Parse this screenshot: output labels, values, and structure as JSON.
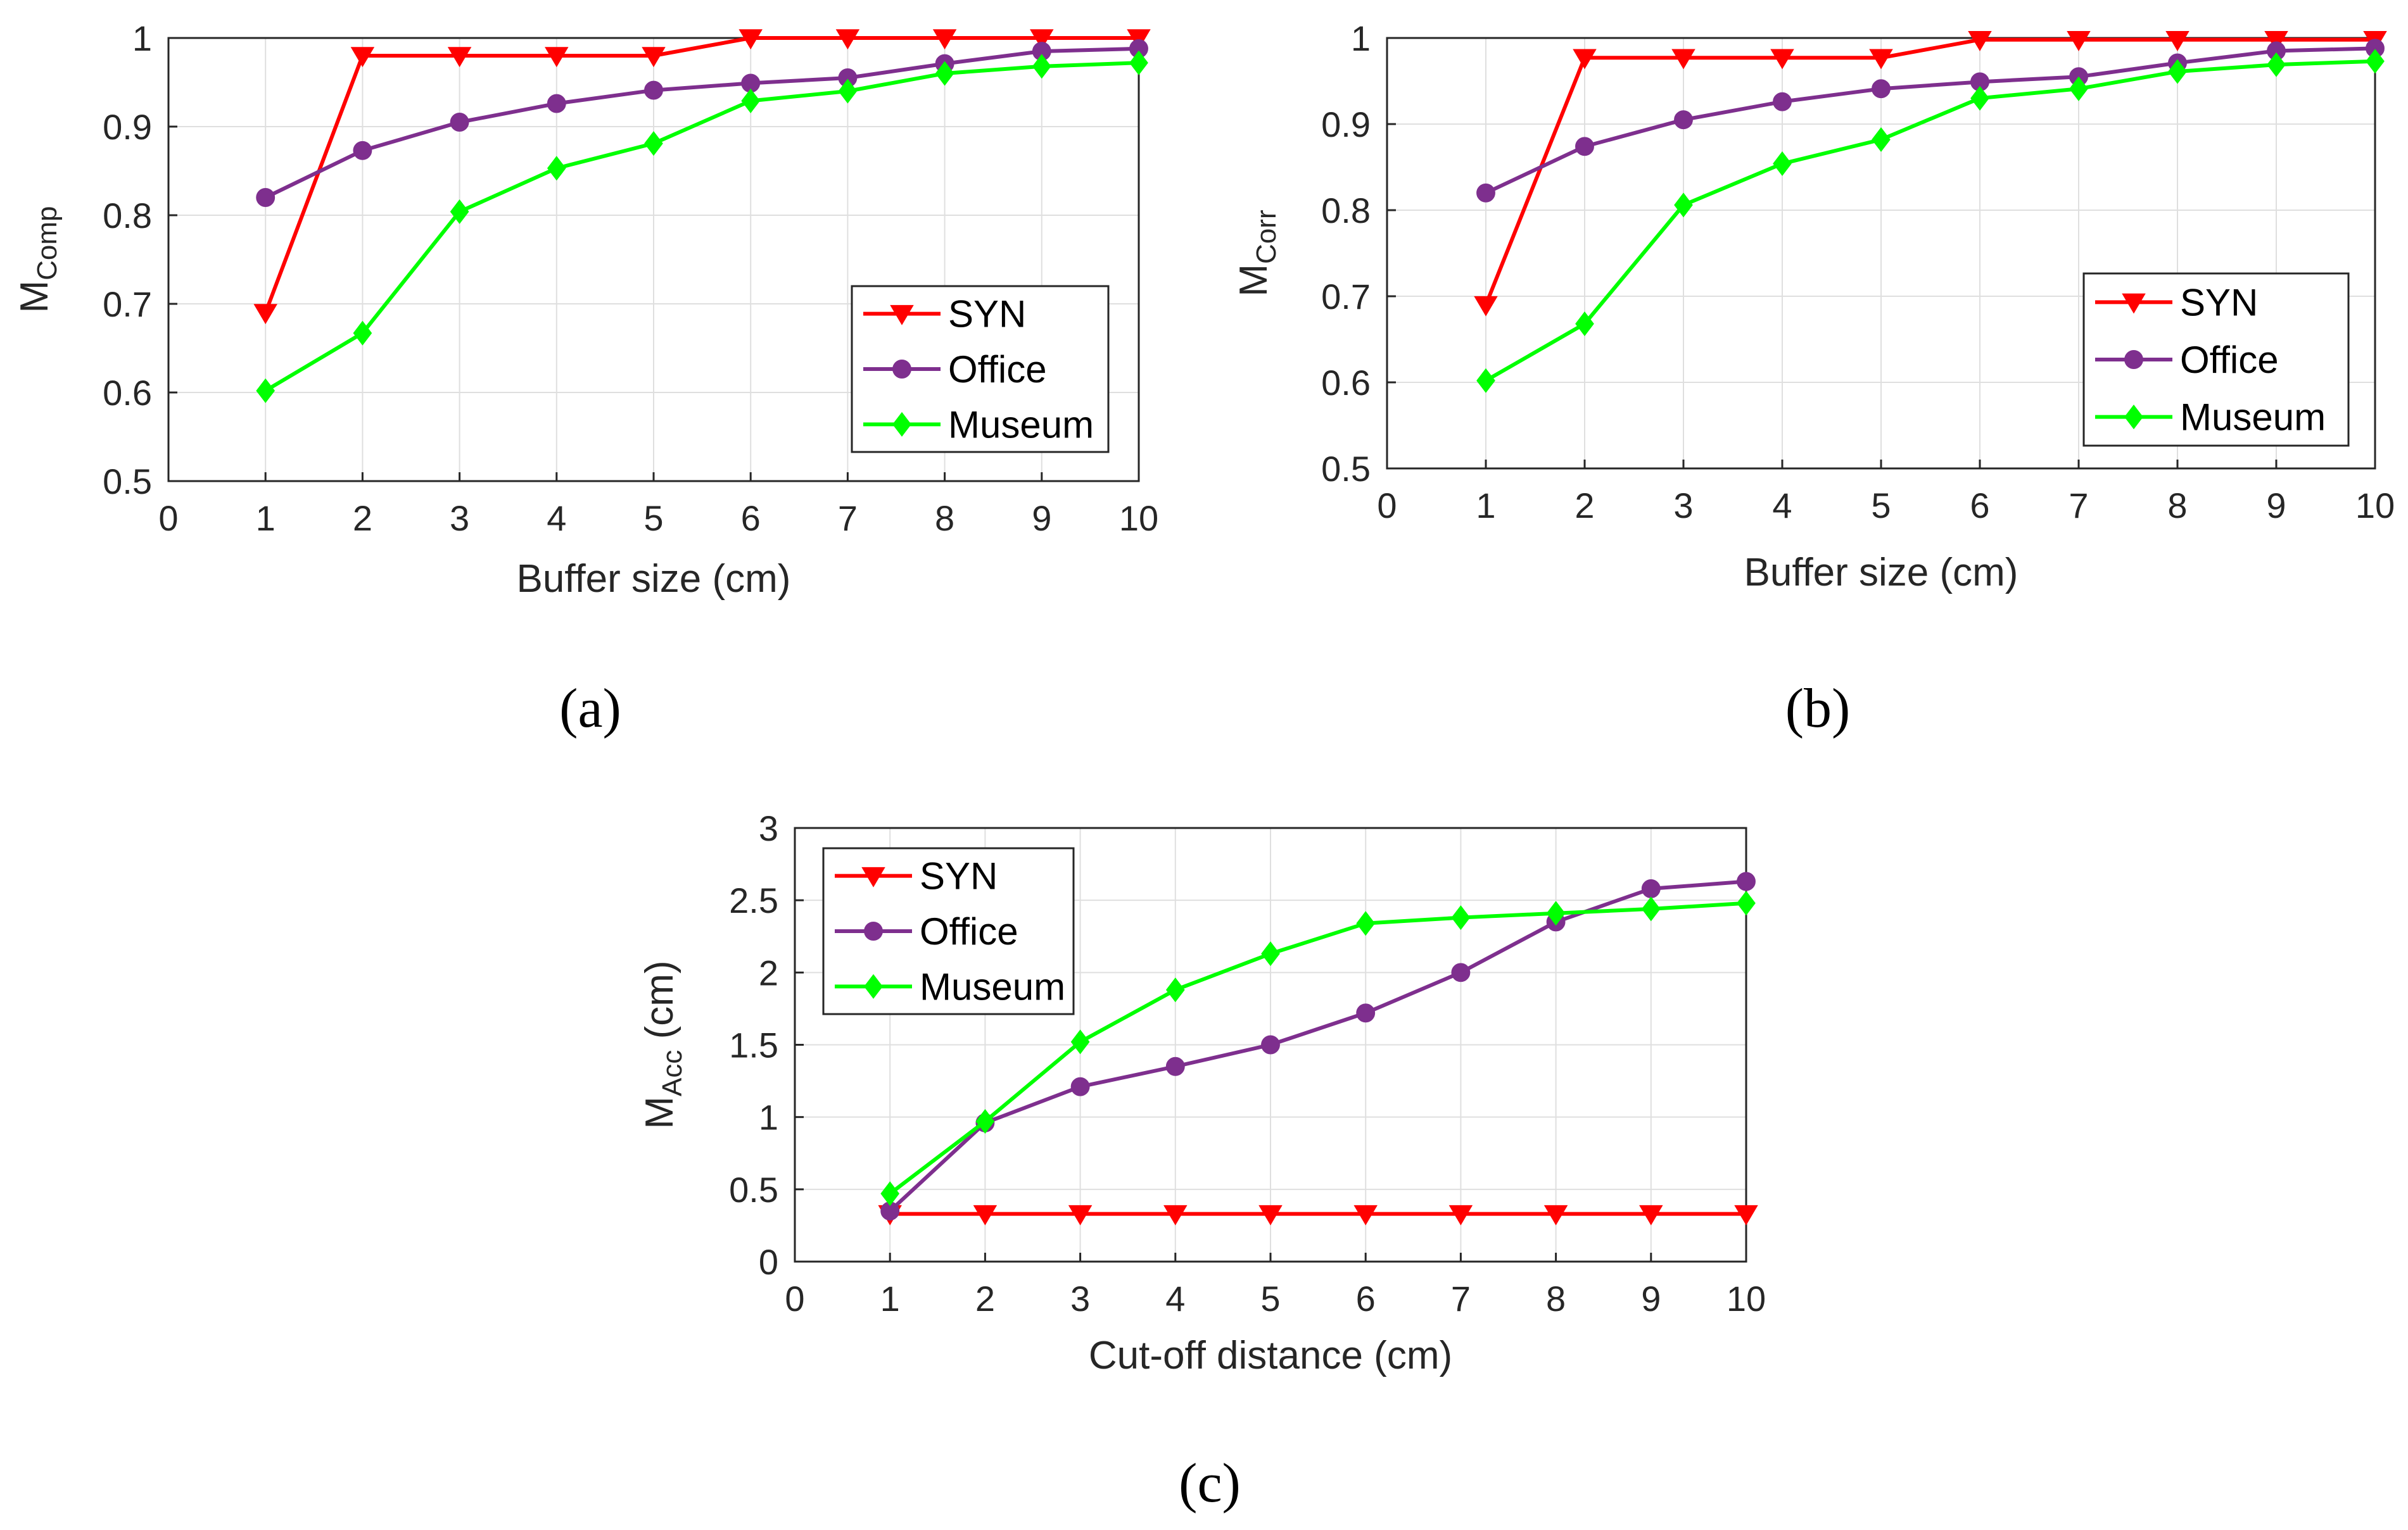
{
  "colors": {
    "syn": "#ff0000",
    "office": "#7e2f8e",
    "museum": "#00ff00",
    "axis": "#262626",
    "grid": "#dfdfdf"
  },
  "captions": [
    "(a)",
    "(b)",
    "(c)"
  ],
  "chart_data": [
    {
      "id": "a",
      "type": "line",
      "xlabel": "Buffer size (cm)",
      "ylabel_main": "M",
      "ylabel_sub": "Comp",
      "xlim": [
        0,
        10
      ],
      "ylim": [
        0.5,
        1
      ],
      "xticks": [
        "0",
        "1",
        "2",
        "3",
        "4",
        "5",
        "6",
        "7",
        "8",
        "9",
        "10"
      ],
      "yticks": [
        "0.5",
        "0.6",
        "0.7",
        "0.8",
        "0.9",
        "1"
      ],
      "legend_position": "lower-right",
      "grid": true,
      "x": [
        1,
        2,
        3,
        4,
        5,
        6,
        7,
        8,
        9,
        10
      ],
      "series": [
        {
          "name": "SYN",
          "marker": "triangle-down",
          "color": "#ff0000",
          "values": [
            0.69,
            0.98,
            0.98,
            0.98,
            0.98,
            1.0,
            1.0,
            1.0,
            1.0,
            1.0
          ]
        },
        {
          "name": "Office",
          "marker": "circle",
          "color": "#7e2f8e",
          "values": [
            0.82,
            0.873,
            0.905,
            0.926,
            0.941,
            0.949,
            0.955,
            0.971,
            0.985,
            0.988
          ]
        },
        {
          "name": "Museum",
          "marker": "diamond",
          "color": "#00ff00",
          "values": [
            0.602,
            0.667,
            0.804,
            0.853,
            0.881,
            0.929,
            0.94,
            0.96,
            0.968,
            0.972
          ]
        }
      ]
    },
    {
      "id": "b",
      "type": "line",
      "xlabel": "Buffer size (cm)",
      "ylabel_main": "M",
      "ylabel_sub": "Corr",
      "xlim": [
        0,
        10
      ],
      "ylim": [
        0.5,
        1
      ],
      "xticks": [
        "0",
        "1",
        "2",
        "3",
        "4",
        "5",
        "6",
        "7",
        "8",
        "9",
        "10"
      ],
      "yticks": [
        "0.5",
        "0.6",
        "0.7",
        "0.8",
        "0.9",
        "1"
      ],
      "legend_position": "lower-right",
      "grid": true,
      "x": [
        1,
        2,
        3,
        4,
        5,
        6,
        7,
        8,
        9,
        10
      ],
      "series": [
        {
          "name": "SYN",
          "marker": "triangle-down",
          "color": "#ff0000",
          "values": [
            0.69,
            0.977,
            0.977,
            0.977,
            0.977,
            0.998,
            0.998,
            0.998,
            0.998,
            0.998
          ]
        },
        {
          "name": "Office",
          "marker": "circle",
          "color": "#7e2f8e",
          "values": [
            0.82,
            0.874,
            0.905,
            0.926,
            0.941,
            0.949,
            0.955,
            0.971,
            0.985,
            0.988
          ]
        },
        {
          "name": "Museum",
          "marker": "diamond",
          "color": "#00ff00",
          "values": [
            0.602,
            0.668,
            0.806,
            0.854,
            0.882,
            0.93,
            0.941,
            0.961,
            0.969,
            0.973
          ]
        }
      ]
    },
    {
      "id": "c",
      "type": "line",
      "xlabel": "Cut-off distance (cm)",
      "ylabel_main": "M",
      "ylabel_sub": "Acc",
      "ylabel_suffix": " (cm)",
      "xlim": [
        0,
        10
      ],
      "ylim": [
        0,
        3
      ],
      "xticks": [
        "0",
        "1",
        "2",
        "3",
        "4",
        "5",
        "6",
        "7",
        "8",
        "9",
        "10"
      ],
      "yticks": [
        "0",
        "0.5",
        "1",
        "1.5",
        "2",
        "2.5",
        "3"
      ],
      "legend_position": "top-left",
      "grid": true,
      "x": [
        1,
        2,
        3,
        4,
        5,
        6,
        7,
        8,
        9,
        10
      ],
      "series": [
        {
          "name": "SYN",
          "marker": "triangle-down",
          "color": "#ff0000",
          "values": [
            0.33,
            0.33,
            0.33,
            0.33,
            0.33,
            0.33,
            0.33,
            0.33,
            0.33,
            0.33
          ]
        },
        {
          "name": "Office",
          "marker": "circle",
          "color": "#7e2f8e",
          "values": [
            0.35,
            0.96,
            1.21,
            1.35,
            1.5,
            1.72,
            2.0,
            2.35,
            2.58,
            2.63
          ]
        },
        {
          "name": "Museum",
          "marker": "diamond",
          "color": "#00ff00",
          "values": [
            0.47,
            0.97,
            1.52,
            1.88,
            2.13,
            2.34,
            2.38,
            2.41,
            2.44,
            2.48
          ]
        }
      ]
    }
  ]
}
